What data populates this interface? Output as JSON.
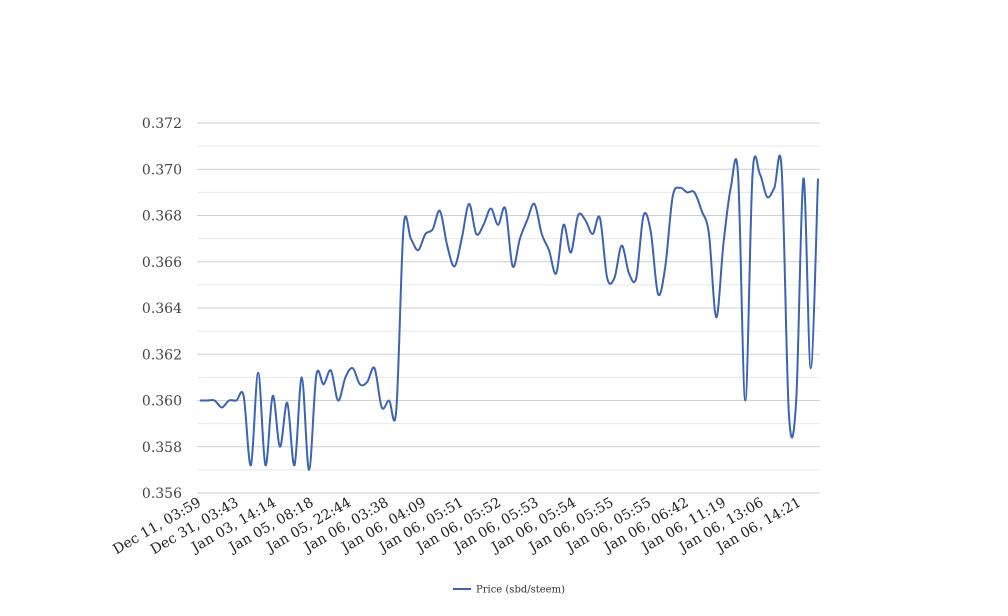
{
  "chart_data": {
    "type": "line",
    "title": "",
    "xlabel": "",
    "ylabel": "",
    "ylim": [
      0.356,
      0.372
    ],
    "yticks": [
      "0.356",
      "0.358",
      "0.360",
      "0.362",
      "0.364",
      "0.366",
      "0.368",
      "0.370",
      "0.372"
    ],
    "grid": "horizontal",
    "legend_position": "bottom",
    "line_color": "#3a63b3",
    "grid_color": "#d0d0d0",
    "minor_grid_color": "#e8e8e8",
    "x_tick_labels": [
      "Dec 11, 03:59",
      "Dec 31, 03:43",
      "Jan 03, 14:14",
      "Jan 05, 08:18",
      "Jan 05, 22:44",
      "Jan 06, 03:38",
      "Jan 06, 04:09",
      "Jan 06, 05:51",
      "Jan 06, 05:52",
      "Jan 06, 05:53",
      "Jan 06, 05:54",
      "Jan 06, 05:55",
      "Jan 06, 05:55",
      "Jan 06, 06:42",
      "Jan 06, 11:19",
      "Jan 06, 13:06",
      "Jan 06, 14:21"
    ],
    "series": [
      {
        "name": "Price (sbd/steem)",
        "values": [
          0.36,
          0.36,
          0.36,
          0.3597,
          0.36,
          0.36,
          0.3602,
          0.3572,
          0.3612,
          0.3572,
          0.3602,
          0.358,
          0.3599,
          0.3572,
          0.361,
          0.357,
          0.3611,
          0.3607,
          0.3613,
          0.36,
          0.361,
          0.3614,
          0.3607,
          0.3608,
          0.3614,
          0.3597,
          0.36,
          0.3596,
          0.3675,
          0.367,
          0.3665,
          0.3672,
          0.3674,
          0.3682,
          0.3667,
          0.3658,
          0.367,
          0.3685,
          0.3672,
          0.3676,
          0.3683,
          0.3676,
          0.3683,
          0.3658,
          0.367,
          0.3678,
          0.3685,
          0.3672,
          0.3665,
          0.3655,
          0.3676,
          0.3664,
          0.368,
          0.3678,
          0.3672,
          0.3679,
          0.3653,
          0.3653,
          0.3667,
          0.3655,
          0.3653,
          0.368,
          0.3673,
          0.3646,
          0.3658,
          0.3688,
          0.3692,
          0.369,
          0.369,
          0.3682,
          0.3672,
          0.3636,
          0.3668,
          0.3692,
          0.3698,
          0.36,
          0.3698,
          0.3698,
          0.3688,
          0.3692,
          0.37,
          0.3594,
          0.36,
          0.3696,
          0.3614,
          0.3696
        ]
      }
    ]
  }
}
